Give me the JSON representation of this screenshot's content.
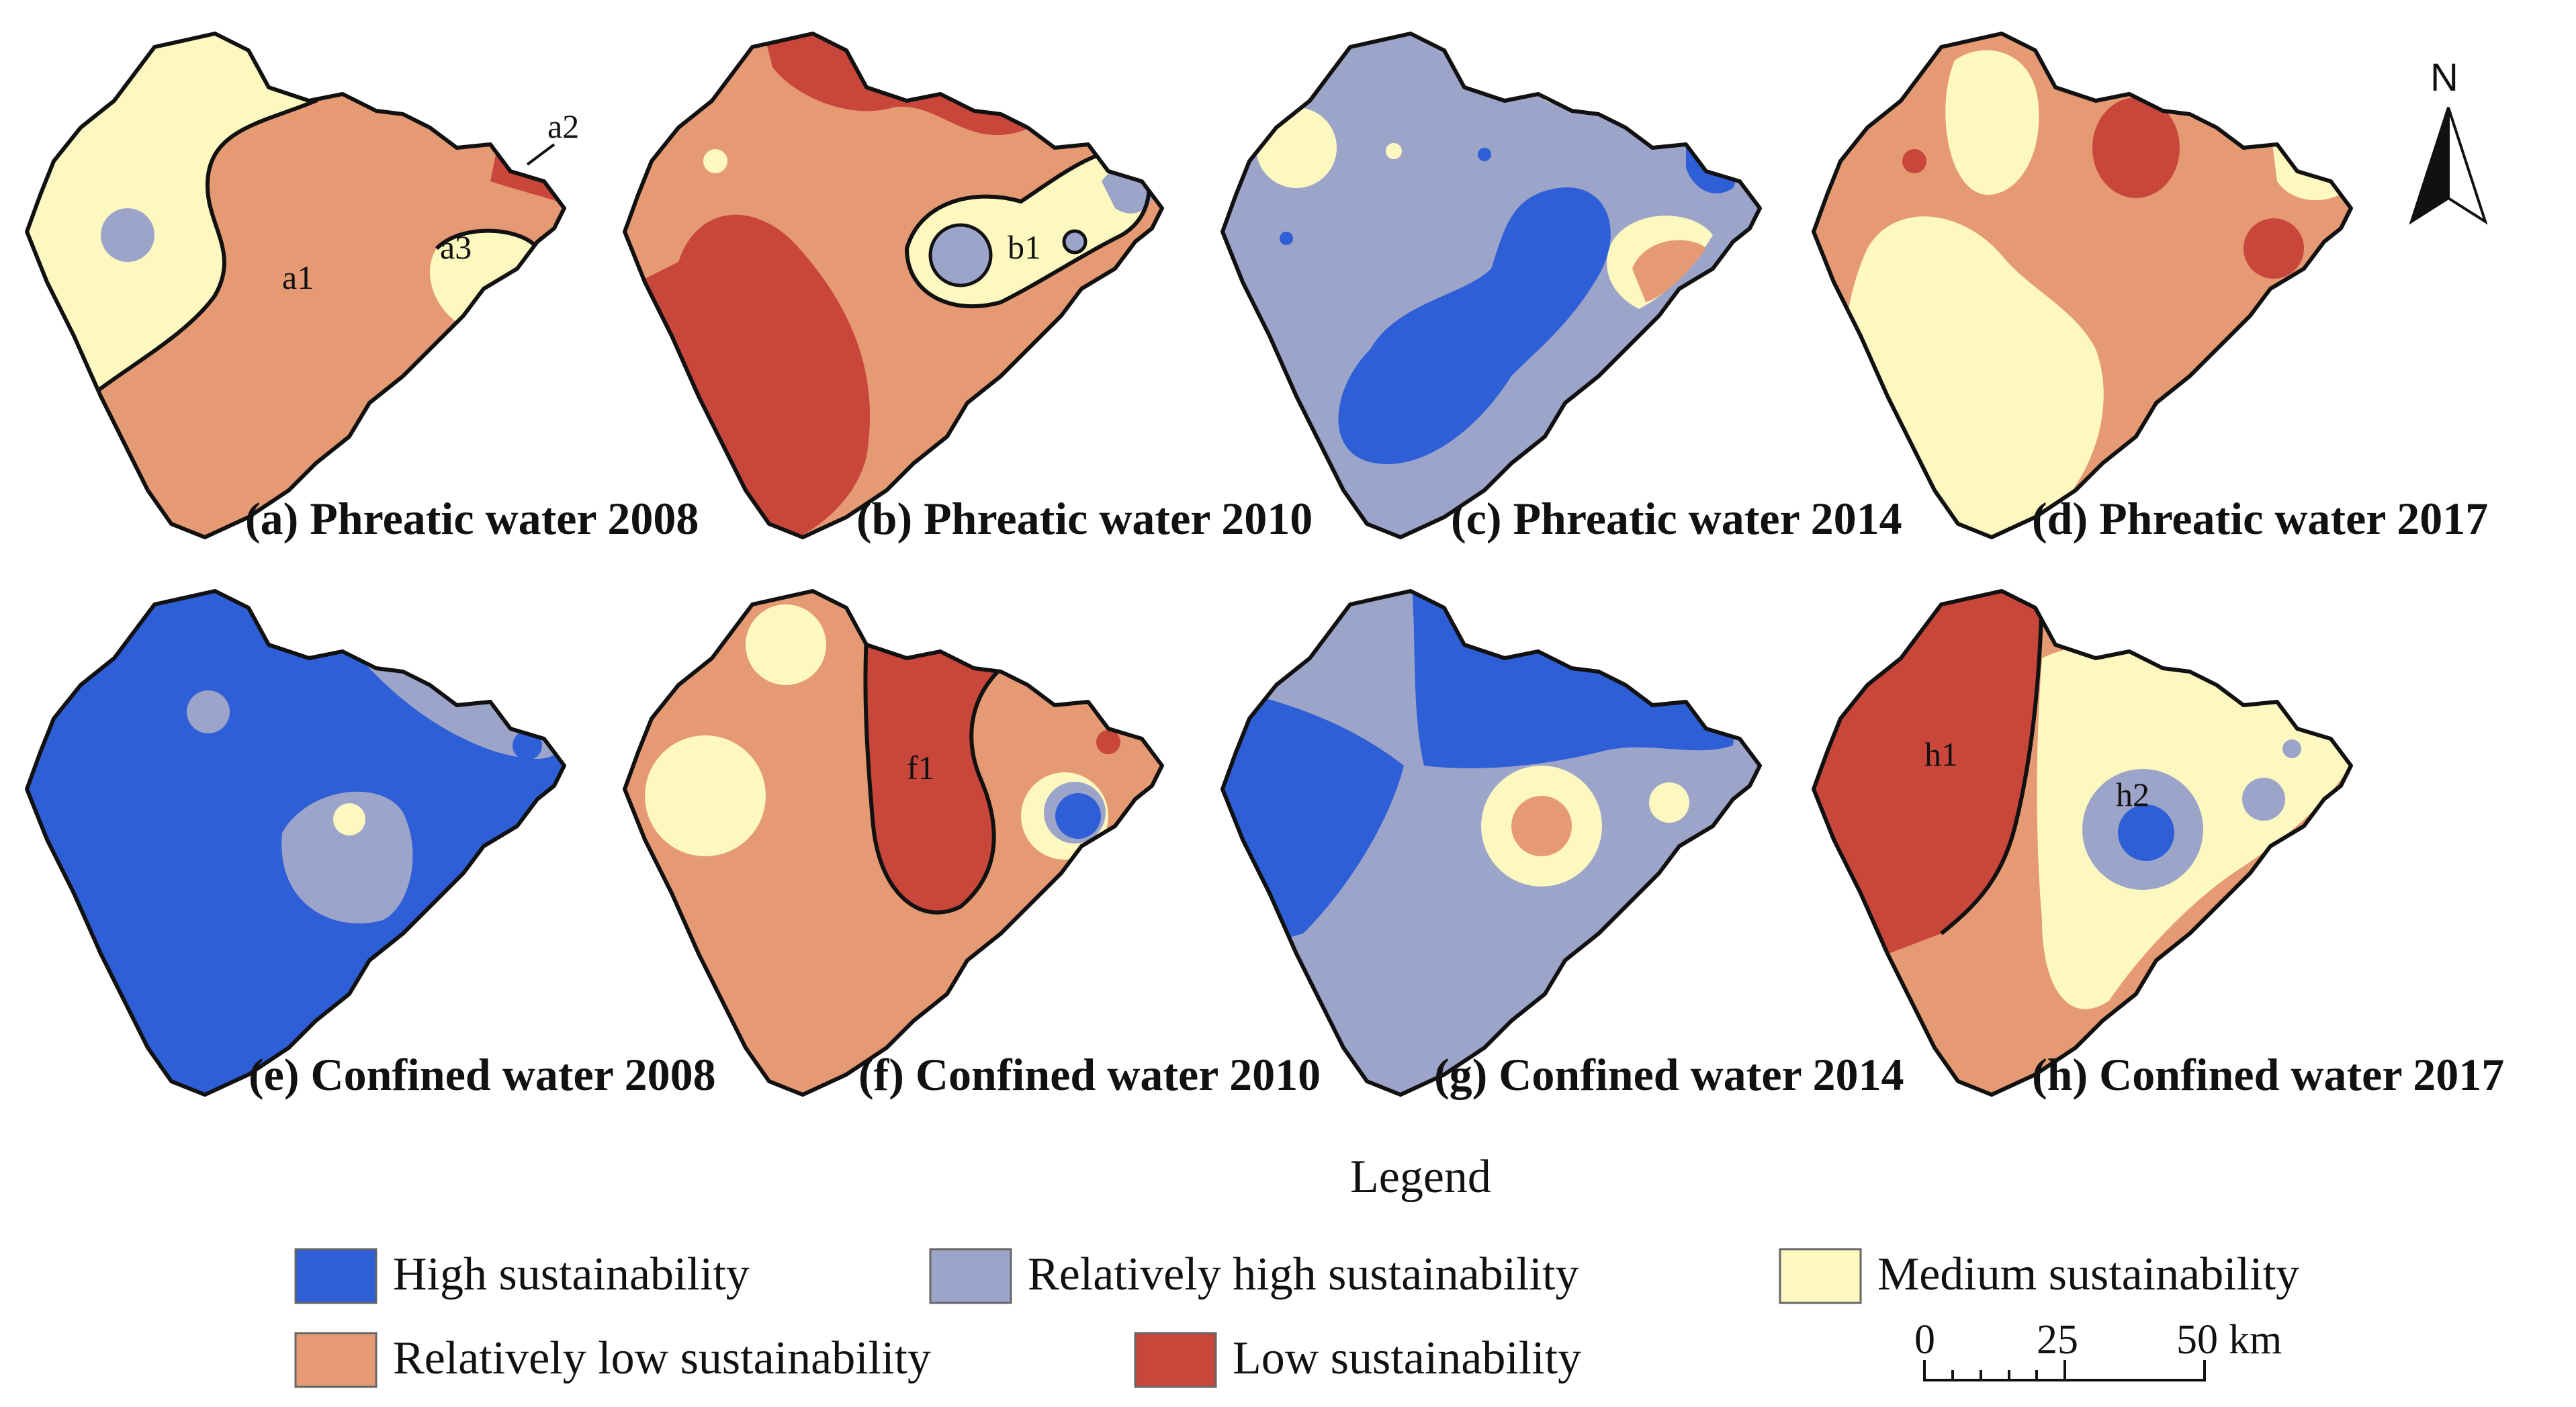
{
  "colors": {
    "high": "#2e5fd6",
    "relatively_high": "#9ca5c9",
    "medium": "#fdf8c0",
    "relatively_low": "#e59a74",
    "low": "#c9463b"
  },
  "panels": [
    {
      "caption": "(a) Phreatic water 2008",
      "zones": [
        "a1",
        "a2",
        "a3"
      ]
    },
    {
      "caption": "(b) Phreatic water 2010",
      "zones": [
        "b1"
      ]
    },
    {
      "caption": "(c) Phreatic water 2014",
      "zones": []
    },
    {
      "caption": "(d) Phreatic water 2017",
      "zones": []
    },
    {
      "caption": "(e) Confined water 2008",
      "zones": []
    },
    {
      "caption": "(f) Confined water 2010",
      "zones": [
        "f1"
      ]
    },
    {
      "caption": "(g) Confined water 2014",
      "zones": []
    },
    {
      "caption": "(h) Confined water 2017",
      "zones": [
        "h1",
        "h2"
      ]
    }
  ],
  "legend": {
    "title": "Legend",
    "items": [
      {
        "label": "High sustainability",
        "color": "#2e5fd6"
      },
      {
        "label": "Relatively high sustainability",
        "color": "#9ca5c9"
      },
      {
        "label": "Medium sustainability",
        "color": "#fdf8c0"
      },
      {
        "label": "Relatively low sustainability",
        "color": "#e59a74"
      },
      {
        "label": "Low sustainability",
        "color": "#c9463b"
      }
    ]
  },
  "north_arrow": {
    "label": "N"
  },
  "scale_bar": {
    "ticks": [
      "0",
      "25",
      "50"
    ],
    "unit": "km"
  }
}
